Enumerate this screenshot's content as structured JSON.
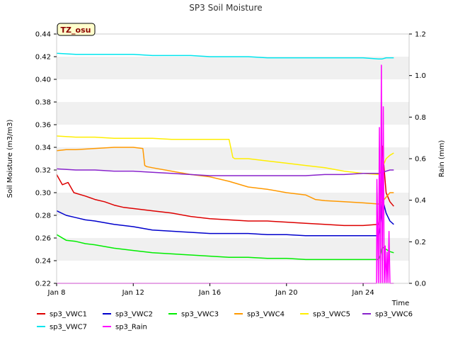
{
  "chart_data": {
    "type": "line",
    "title": "SP3 Soil Moisture",
    "xlabel": "Time",
    "ylabel": "Soil Moisture (m3/m3)",
    "y2label": "Rain (mm)",
    "station_badge": "TZ_osu",
    "xlim": [
      0,
      18.4
    ],
    "ylim": [
      0.22,
      0.44
    ],
    "y2lim": [
      0.0,
      1.2
    ],
    "x_ticks": [
      {
        "x": 0,
        "label": "Jan 8"
      },
      {
        "x": 4,
        "label": "Jan 12"
      },
      {
        "x": 8,
        "label": "Jan 16"
      },
      {
        "x": 12,
        "label": "Jan 20"
      },
      {
        "x": 16,
        "label": "Jan 24"
      }
    ],
    "y_ticks": [
      "0.22",
      "0.24",
      "0.26",
      "0.28",
      "0.30",
      "0.32",
      "0.34",
      "0.36",
      "0.38",
      "0.40",
      "0.42",
      "0.44"
    ],
    "y2_ticks": [
      "0.0",
      "0.2",
      "0.4",
      "0.6",
      "0.8",
      "1.0",
      "1.2"
    ],
    "grid": "horizontal bands",
    "legend_position": "bottom",
    "series": [
      {
        "name": "sp3_VWC1",
        "color": "#dd0000",
        "axis": "left",
        "x": [
          0.0,
          0.3,
          0.6,
          0.9,
          1.5,
          2.0,
          2.5,
          3.0,
          3.5,
          4.0,
          5.0,
          6.0,
          7.0,
          8.0,
          9.0,
          10.0,
          11.0,
          12.0,
          13.0,
          14.0,
          15.0,
          16.0,
          16.8,
          16.9,
          17.0,
          17.2,
          17.4,
          17.6
        ],
        "values": [
          0.316,
          0.307,
          0.309,
          0.3,
          0.297,
          0.294,
          0.292,
          0.289,
          0.287,
          0.286,
          0.284,
          0.282,
          0.279,
          0.277,
          0.276,
          0.275,
          0.275,
          0.274,
          0.273,
          0.272,
          0.271,
          0.271,
          0.272,
          0.285,
          0.341,
          0.3,
          0.292,
          0.288
        ]
      },
      {
        "name": "sp3_VWC2",
        "color": "#0000cc",
        "axis": "left",
        "x": [
          0.0,
          0.5,
          1.0,
          1.5,
          2.0,
          3.0,
          4.0,
          5.0,
          6.0,
          7.0,
          8.0,
          9.0,
          10.0,
          11.0,
          12.0,
          13.0,
          14.0,
          15.0,
          16.0,
          16.8,
          16.9,
          17.0,
          17.2,
          17.4,
          17.6
        ],
        "values": [
          0.284,
          0.28,
          0.278,
          0.276,
          0.275,
          0.272,
          0.27,
          0.267,
          0.266,
          0.265,
          0.264,
          0.264,
          0.264,
          0.263,
          0.263,
          0.262,
          0.262,
          0.262,
          0.262,
          0.262,
          0.27,
          0.295,
          0.282,
          0.275,
          0.272
        ]
      },
      {
        "name": "sp3_VWC3",
        "color": "#00ee00",
        "axis": "left",
        "x": [
          0.0,
          0.5,
          1.0,
          1.5,
          2.0,
          3.0,
          4.0,
          5.0,
          6.0,
          7.0,
          8.0,
          9.0,
          10.0,
          11.0,
          12.0,
          13.0,
          14.0,
          15.0,
          16.0,
          16.8,
          16.9,
          17.0,
          17.2,
          17.4,
          17.6
        ],
        "values": [
          0.263,
          0.258,
          0.257,
          0.255,
          0.254,
          0.251,
          0.249,
          0.247,
          0.246,
          0.245,
          0.244,
          0.243,
          0.243,
          0.242,
          0.242,
          0.241,
          0.241,
          0.241,
          0.241,
          0.241,
          0.245,
          0.252,
          0.25,
          0.248,
          0.247
        ]
      },
      {
        "name": "sp3_VWC4",
        "color": "#ff9900",
        "axis": "left",
        "x": [
          0.0,
          0.5,
          1.0,
          2.0,
          3.0,
          3.5,
          4.0,
          4.5,
          4.6,
          4.7,
          5.0,
          6.0,
          7.0,
          8.0,
          9.0,
          10.0,
          11.0,
          12.0,
          13.0,
          13.5,
          14.0,
          15.0,
          16.0,
          16.8,
          17.0,
          17.2,
          17.4,
          17.6
        ],
        "values": [
          0.337,
          0.338,
          0.338,
          0.339,
          0.34,
          0.34,
          0.34,
          0.339,
          0.324,
          0.323,
          0.322,
          0.319,
          0.316,
          0.314,
          0.31,
          0.305,
          0.303,
          0.3,
          0.298,
          0.294,
          0.293,
          0.292,
          0.291,
          0.29,
          0.292,
          0.296,
          0.3,
          0.3
        ]
      },
      {
        "name": "sp3_VWC5",
        "color": "#ffee00",
        "axis": "left",
        "x": [
          0.0,
          1.0,
          2.0,
          3.0,
          4.0,
          5.0,
          6.0,
          7.0,
          7.5,
          9.0,
          9.2,
          9.3,
          10.0,
          11.0,
          12.0,
          13.0,
          14.0,
          15.0,
          16.0,
          16.8,
          17.0,
          17.2,
          17.4,
          17.6
        ],
        "values": [
          0.35,
          0.349,
          0.349,
          0.348,
          0.348,
          0.348,
          0.347,
          0.347,
          0.347,
          0.347,
          0.331,
          0.33,
          0.33,
          0.328,
          0.326,
          0.324,
          0.322,
          0.319,
          0.317,
          0.316,
          0.322,
          0.33,
          0.333,
          0.335
        ]
      },
      {
        "name": "sp3_VWC6",
        "color": "#8822cc",
        "axis": "left",
        "x": [
          0.0,
          1.0,
          2.0,
          3.0,
          4.0,
          5.0,
          6.0,
          7.0,
          8.0,
          9.0,
          10.0,
          11.0,
          12.0,
          13.0,
          14.0,
          15.0,
          16.0,
          16.8,
          17.0,
          17.2,
          17.4,
          17.6
        ],
        "values": [
          0.321,
          0.32,
          0.32,
          0.319,
          0.319,
          0.318,
          0.317,
          0.316,
          0.315,
          0.315,
          0.315,
          0.315,
          0.315,
          0.315,
          0.316,
          0.316,
          0.317,
          0.317,
          0.318,
          0.319,
          0.32,
          0.32
        ]
      },
      {
        "name": "sp3_VWC7",
        "color": "#00e5ee",
        "axis": "left",
        "x": [
          0.0,
          1.0,
          2.0,
          3.0,
          4.0,
          5.0,
          6.0,
          7.0,
          8.0,
          9.0,
          10.0,
          11.0,
          12.0,
          13.0,
          14.0,
          15.0,
          16.0,
          16.8,
          17.0,
          17.2,
          17.4,
          17.6
        ],
        "values": [
          0.423,
          0.422,
          0.422,
          0.422,
          0.422,
          0.421,
          0.421,
          0.421,
          0.42,
          0.42,
          0.42,
          0.419,
          0.419,
          0.419,
          0.419,
          0.419,
          0.419,
          0.418,
          0.418,
          0.419,
          0.419,
          0.419
        ]
      },
      {
        "name": "sp3_Rain",
        "color": "#ff00ff",
        "axis": "right",
        "x": [
          0.0,
          16.7,
          16.72,
          16.8,
          16.85,
          16.9,
          16.95,
          17.0,
          17.05,
          17.1,
          17.15,
          17.2,
          17.25,
          17.3,
          17.35,
          17.4,
          17.45,
          17.5,
          17.6
        ],
        "values": [
          0.0,
          0.0,
          0.5,
          0.0,
          0.75,
          0.0,
          1.05,
          0.0,
          0.85,
          0.0,
          0.18,
          0.0,
          0.15,
          0.0,
          0.25,
          0.0,
          0.0,
          0.0,
          0.0
        ]
      }
    ]
  }
}
